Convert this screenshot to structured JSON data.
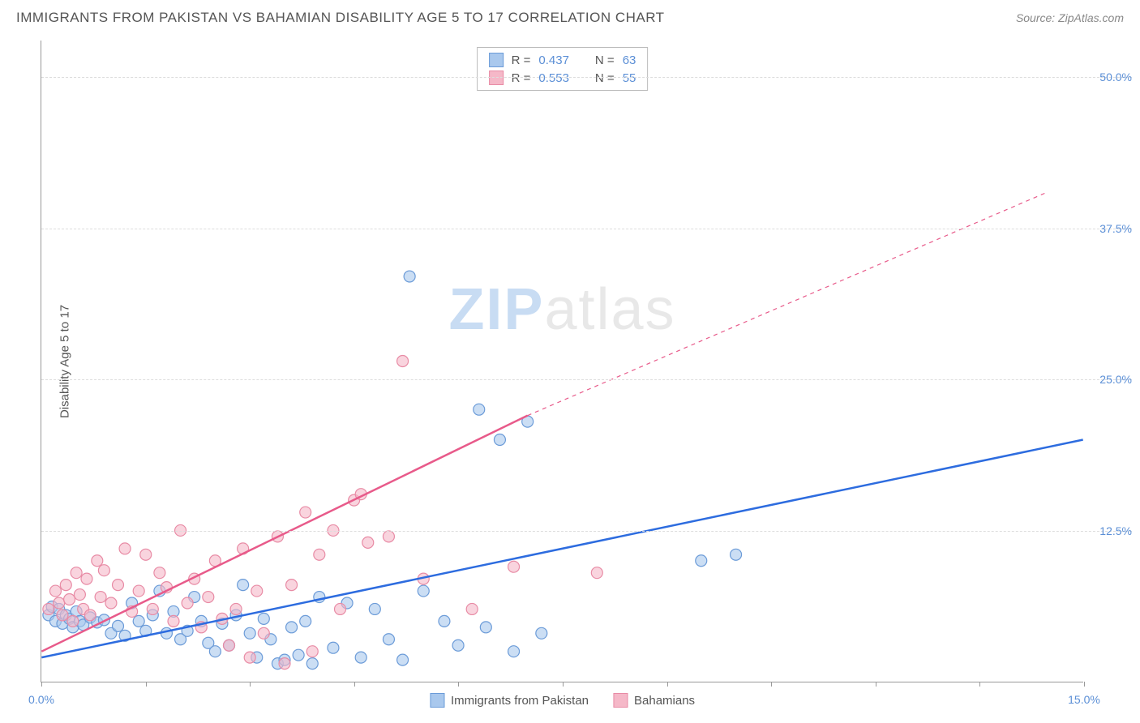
{
  "header": {
    "title": "IMMIGRANTS FROM PAKISTAN VS BAHAMIAN DISABILITY AGE 5 TO 17 CORRELATION CHART",
    "source_prefix": "Source: ",
    "source_name": "ZipAtlas.com"
  },
  "chart": {
    "type": "scatter",
    "ylabel": "Disability Age 5 to 17",
    "xlim": [
      0,
      15
    ],
    "ylim": [
      0,
      53
    ],
    "xtick_positions": [
      0,
      1.5,
      3.0,
      4.5,
      6.0,
      7.5,
      9.0,
      10.5,
      12.0,
      13.5,
      15.0
    ],
    "xtick_labels_shown": {
      "0": "0.0%",
      "15": "15.0%"
    },
    "ytick_positions": [
      12.5,
      25.0,
      37.5,
      50.0
    ],
    "ytick_labels": [
      "12.5%",
      "25.0%",
      "37.5%",
      "50.0%"
    ],
    "grid_color": "#dddddd",
    "axis_color": "#999999",
    "background_color": "#ffffff",
    "marker_radius": 7,
    "marker_stroke_width": 1.2,
    "series": [
      {
        "name": "Immigrants from Pakistan",
        "fill_color": "#a9c8ed",
        "fill_opacity": 0.6,
        "stroke_color": "#6b9bd8",
        "trend_color": "#2d6cdf",
        "trend_width": 2.5,
        "trend": {
          "x1": 0,
          "y1": 2.0,
          "x2": 15,
          "y2": 20.0
        },
        "stats": {
          "R": "0.437",
          "N": "63"
        },
        "points": [
          [
            0.1,
            5.5
          ],
          [
            0.15,
            6.2
          ],
          [
            0.2,
            5.0
          ],
          [
            0.25,
            6.0
          ],
          [
            0.3,
            4.8
          ],
          [
            0.35,
            5.5
          ],
          [
            0.4,
            5.2
          ],
          [
            0.45,
            4.5
          ],
          [
            0.5,
            5.8
          ],
          [
            0.55,
            5.0
          ],
          [
            0.6,
            4.7
          ],
          [
            0.7,
            5.3
          ],
          [
            0.8,
            4.9
          ],
          [
            0.9,
            5.1
          ],
          [
            1.0,
            4.0
          ],
          [
            1.1,
            4.6
          ],
          [
            1.2,
            3.8
          ],
          [
            1.3,
            6.5
          ],
          [
            1.4,
            5.0
          ],
          [
            1.5,
            4.2
          ],
          [
            1.6,
            5.5
          ],
          [
            1.7,
            7.5
          ],
          [
            1.8,
            4.0
          ],
          [
            1.9,
            5.8
          ],
          [
            2.0,
            3.5
          ],
          [
            2.1,
            4.2
          ],
          [
            2.2,
            7.0
          ],
          [
            2.3,
            5.0
          ],
          [
            2.4,
            3.2
          ],
          [
            2.5,
            2.5
          ],
          [
            2.6,
            4.8
          ],
          [
            2.7,
            3.0
          ],
          [
            2.8,
            5.5
          ],
          [
            2.9,
            8.0
          ],
          [
            3.0,
            4.0
          ],
          [
            3.1,
            2.0
          ],
          [
            3.2,
            5.2
          ],
          [
            3.3,
            3.5
          ],
          [
            3.4,
            1.5
          ],
          [
            3.5,
            1.8
          ],
          [
            3.6,
            4.5
          ],
          [
            3.7,
            2.2
          ],
          [
            3.8,
            5.0
          ],
          [
            3.9,
            1.5
          ],
          [
            4.0,
            7.0
          ],
          [
            4.2,
            2.8
          ],
          [
            4.4,
            6.5
          ],
          [
            4.6,
            2.0
          ],
          [
            4.8,
            6.0
          ],
          [
            5.0,
            3.5
          ],
          [
            5.2,
            1.8
          ],
          [
            5.3,
            33.5
          ],
          [
            5.5,
            7.5
          ],
          [
            5.8,
            5.0
          ],
          [
            6.0,
            3.0
          ],
          [
            6.3,
            22.5
          ],
          [
            6.4,
            4.5
          ],
          [
            6.6,
            20.0
          ],
          [
            6.8,
            2.5
          ],
          [
            7.0,
            21.5
          ],
          [
            7.2,
            4.0
          ],
          [
            9.5,
            10.0
          ],
          [
            10.0,
            10.5
          ]
        ]
      },
      {
        "name": "Bahamians",
        "fill_color": "#f5b8c8",
        "fill_opacity": 0.6,
        "stroke_color": "#e88ba5",
        "trend_color": "#e85a8a",
        "trend_width": 2.5,
        "trend_solid": {
          "x1": 0,
          "y1": 2.5,
          "x2": 7.0,
          "y2": 22.0
        },
        "trend_dashed": {
          "x1": 7.0,
          "y1": 22.0,
          "x2": 14.5,
          "y2": 40.5
        },
        "stats": {
          "R": "0.553",
          "N": "55"
        },
        "points": [
          [
            0.1,
            6.0
          ],
          [
            0.2,
            7.5
          ],
          [
            0.25,
            6.5
          ],
          [
            0.3,
            5.5
          ],
          [
            0.35,
            8.0
          ],
          [
            0.4,
            6.8
          ],
          [
            0.45,
            5.0
          ],
          [
            0.5,
            9.0
          ],
          [
            0.55,
            7.2
          ],
          [
            0.6,
            6.0
          ],
          [
            0.65,
            8.5
          ],
          [
            0.7,
            5.5
          ],
          [
            0.8,
            10.0
          ],
          [
            0.85,
            7.0
          ],
          [
            0.9,
            9.2
          ],
          [
            1.0,
            6.5
          ],
          [
            1.1,
            8.0
          ],
          [
            1.2,
            11.0
          ],
          [
            1.3,
            5.8
          ],
          [
            1.4,
            7.5
          ],
          [
            1.5,
            10.5
          ],
          [
            1.6,
            6.0
          ],
          [
            1.7,
            9.0
          ],
          [
            1.8,
            7.8
          ],
          [
            1.9,
            5.0
          ],
          [
            2.0,
            12.5
          ],
          [
            2.1,
            6.5
          ],
          [
            2.2,
            8.5
          ],
          [
            2.3,
            4.5
          ],
          [
            2.4,
            7.0
          ],
          [
            2.5,
            10.0
          ],
          [
            2.6,
            5.2
          ],
          [
            2.7,
            3.0
          ],
          [
            2.8,
            6.0
          ],
          [
            2.9,
            11.0
          ],
          [
            3.0,
            2.0
          ],
          [
            3.1,
            7.5
          ],
          [
            3.2,
            4.0
          ],
          [
            3.4,
            12.0
          ],
          [
            3.5,
            1.5
          ],
          [
            3.6,
            8.0
          ],
          [
            3.8,
            14.0
          ],
          [
            3.9,
            2.5
          ],
          [
            4.0,
            10.5
          ],
          [
            4.2,
            12.5
          ],
          [
            4.3,
            6.0
          ],
          [
            4.5,
            15.0
          ],
          [
            4.6,
            15.5
          ],
          [
            4.7,
            11.5
          ],
          [
            5.0,
            12.0
          ],
          [
            5.2,
            26.5
          ],
          [
            5.5,
            8.5
          ],
          [
            6.2,
            6.0
          ],
          [
            6.8,
            9.5
          ],
          [
            8.0,
            9.0
          ]
        ]
      }
    ],
    "watermark": {
      "zip": "ZIP",
      "atlas": "atlas"
    },
    "stats_legend_labels": {
      "R": "R =",
      "N": "N ="
    },
    "bottom_legend": [
      {
        "label": "Immigrants from Pakistan",
        "fill": "#a9c8ed",
        "stroke": "#6b9bd8"
      },
      {
        "label": "Bahamians",
        "fill": "#f5b8c8",
        "stroke": "#e88ba5"
      }
    ]
  }
}
